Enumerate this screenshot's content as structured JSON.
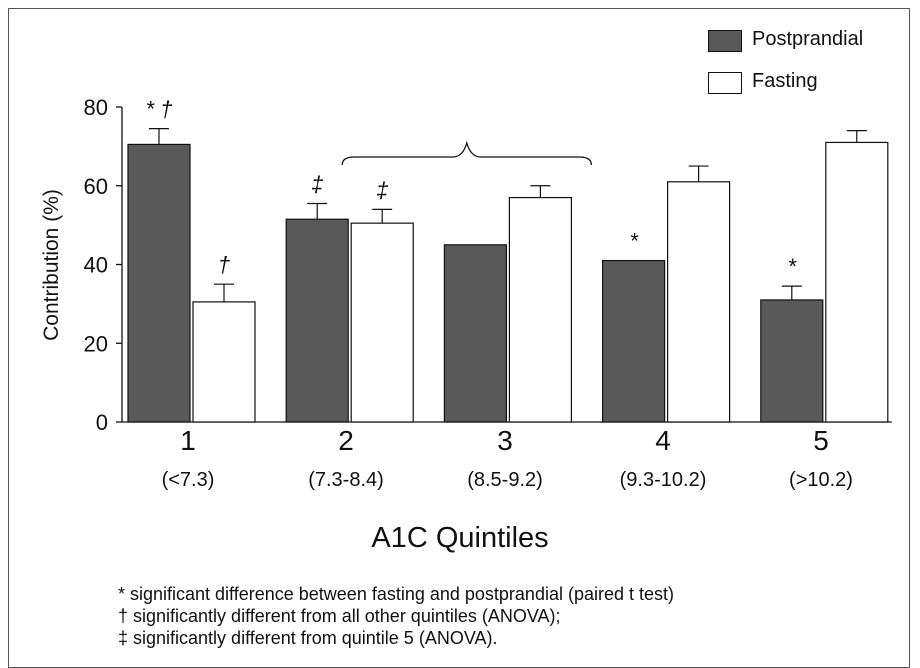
{
  "chart_data": {
    "type": "bar",
    "categories": [
      "1",
      "2",
      "3",
      "4",
      "5"
    ],
    "category_ranges": [
      "(<7.3)",
      "(7.3-8.4)",
      "(8.5-9.2)",
      "(9.3-10.2)",
      "(>10.2)"
    ],
    "series": [
      {
        "name": "Postprandial",
        "color": "#595959",
        "values": [
          70.5,
          51.5,
          45,
          41,
          31
        ],
        "errors": [
          4,
          4,
          0,
          0,
          3.5
        ],
        "markers": [
          "* †",
          "‡",
          "",
          "*",
          "*"
        ]
      },
      {
        "name": "Fasting",
        "color": "#ffffff",
        "values": [
          30.5,
          50.5,
          57,
          61,
          71
        ],
        "errors": [
          4.5,
          3.5,
          3,
          4,
          3
        ],
        "markers": [
          "†",
          "‡",
          "",
          "",
          ""
        ]
      }
    ],
    "bracket": {
      "from_category": "2",
      "to_category": "3"
    },
    "xlabel": "A1C Quintiles",
    "ylabel": "Contribution (%)",
    "ylim": [
      0,
      80
    ],
    "yticks": [
      "0",
      "20",
      "40",
      "60",
      "80"
    ],
    "grid": false,
    "legend": "top-right"
  },
  "footnotes": [
    "* significant difference between fasting and postprandial (paired t test)",
    "† significantly different from all other quintiles (ANOVA);",
    "‡ significantly different from quintile 5 (ANOVA)."
  ]
}
